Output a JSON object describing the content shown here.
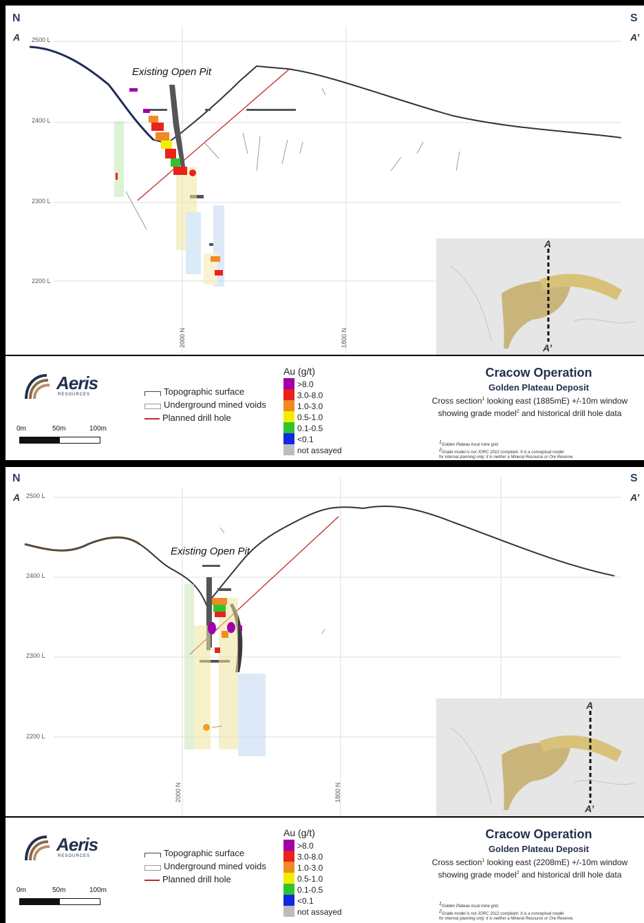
{
  "panels": [
    {
      "compass_left": "N",
      "compass_right": "S",
      "section_start": "A",
      "section_end": "A’",
      "levels": [
        "2500 L",
        "2400 L",
        "2300 L",
        "2200 L"
      ],
      "northings": [
        "2000 N",
        "1800 N"
      ],
      "pit_label": "Existing Open Pit",
      "inset": {
        "marker_top": "A",
        "marker_bottom": "A’"
      },
      "title": "Cracow Operation",
      "subtitle": "Golden Plateau Deposit",
      "desc_line1_pre": "Cross section",
      "desc_line1_sup": "1",
      "desc_line1_post": " looking east (1885mE) +/-10m window",
      "desc_line2_pre": "showing grade model",
      "desc_line2_sup": "2",
      "desc_line2_post": " and historical drill hole data"
    },
    {
      "compass_left": "N",
      "compass_right": "S",
      "section_start": "A",
      "section_end": "A’",
      "levels": [
        "2500 L",
        "2400 L",
        "2300 L",
        "2200 L"
      ],
      "northings": [
        "2000 N",
        "1800 N"
      ],
      "pit_label": "Existing Open Pit",
      "inset": {
        "marker_top": "A",
        "marker_bottom": "A’"
      },
      "title": "Cracow Operation",
      "subtitle": "Golden Plateau Deposit",
      "desc_line1_pre": "Cross section",
      "desc_line1_sup": "1",
      "desc_line1_post": " looking east (2208mE) +/-10m window",
      "desc_line2_pre": "showing grade model",
      "desc_line2_sup": "2",
      "desc_line2_post": " and historical drill hole data"
    }
  ],
  "logo": {
    "word": "Aeris",
    "sub": "RESOURCES"
  },
  "scale_bar": {
    "labels": [
      "0m",
      "50m",
      "100m"
    ]
  },
  "line_legend": [
    "Topographic surface",
    "Underground mined voids",
    "Planned drill hole"
  ],
  "grade_legend": {
    "title": "Au (g/t)",
    "items": [
      {
        "label": ">8.0",
        "color": "#a000a8"
      },
      {
        "label": "3.0-8.0",
        "color": "#e8231b"
      },
      {
        "label": "1.0-3.0",
        "color": "#f08a24"
      },
      {
        "label": "0.5-1.0",
        "color": "#f2ee00"
      },
      {
        "label": "0.1-0.5",
        "color": "#2fc42f"
      },
      {
        "label": "<0.1",
        "color": "#1029e0"
      },
      {
        "label": "not assayed",
        "color": "#bdbdbd"
      }
    ]
  },
  "notes": {
    "n1": "Golden Plateau local mine grid.",
    "n2": "Grade model is not JORC 2012 compliant. It is a conceptual model",
    "n3": "for internal planning only; it is neither a Mineral Resource or Ore Reserve."
  }
}
